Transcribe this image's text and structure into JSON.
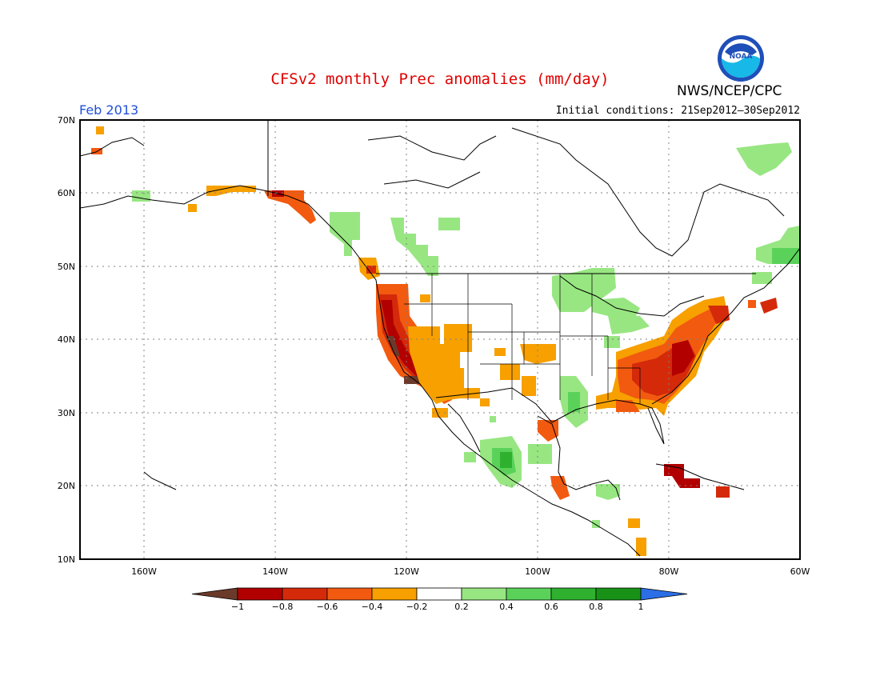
{
  "title": "CFSv2 monthly Prec anomalies (mm/day)",
  "agency": "NWS/NCEP/CPC",
  "logo_text": "NOAA",
  "target_month": "Feb 2013",
  "initial_conditions": "Initial conditions: 21Sep2012–30Sep2012",
  "colors": {
    "title": "#e00000",
    "month": "#2050d8",
    "frame": "#000000",
    "grid": "#808080"
  },
  "map": {
    "lat_labels": [
      "70N",
      "60N",
      "50N",
      "40N",
      "30N",
      "20N",
      "10N"
    ],
    "lon_labels": [
      "160W",
      "140W",
      "120W",
      "100W",
      "80W",
      "60W"
    ]
  },
  "legend": {
    "tick_labels": [
      "−1",
      "−0.8",
      "−0.6",
      "−0.4",
      "−0.2",
      "0.2",
      "0.4",
      "0.6",
      "0.8",
      "1"
    ],
    "colors": [
      "#6b3a2a",
      "#b20000",
      "#d42a0a",
      "#f25a10",
      "#f7a000",
      "#ffffff",
      "#98e682",
      "#5ad25a",
      "#2fb02f",
      "#179217",
      "#2b6ee6"
    ]
  },
  "anomaly_regions": [
    {
      "name": "california-dry",
      "category": "-0.8"
    },
    {
      "name": "southeast-dry",
      "category": "-0.8"
    },
    {
      "name": "southwest-dry",
      "category": "-0.4"
    },
    {
      "name": "northeast-dry",
      "category": "-0.6"
    },
    {
      "name": "central-plains-dry",
      "category": "-0.4"
    },
    {
      "name": "caribbean-dry",
      "category": "-0.8"
    },
    {
      "name": "great-lakes-wet",
      "category": "0.2"
    },
    {
      "name": "mexico-wet",
      "category": "0.6"
    },
    {
      "name": "texas-wet",
      "category": "0.4"
    },
    {
      "name": "pacific-nw-canada-wet",
      "category": "0.2"
    },
    {
      "name": "labrador-wet",
      "category": "0.4"
    },
    {
      "name": "alaska-coast-dry",
      "category": "-0.4"
    }
  ]
}
